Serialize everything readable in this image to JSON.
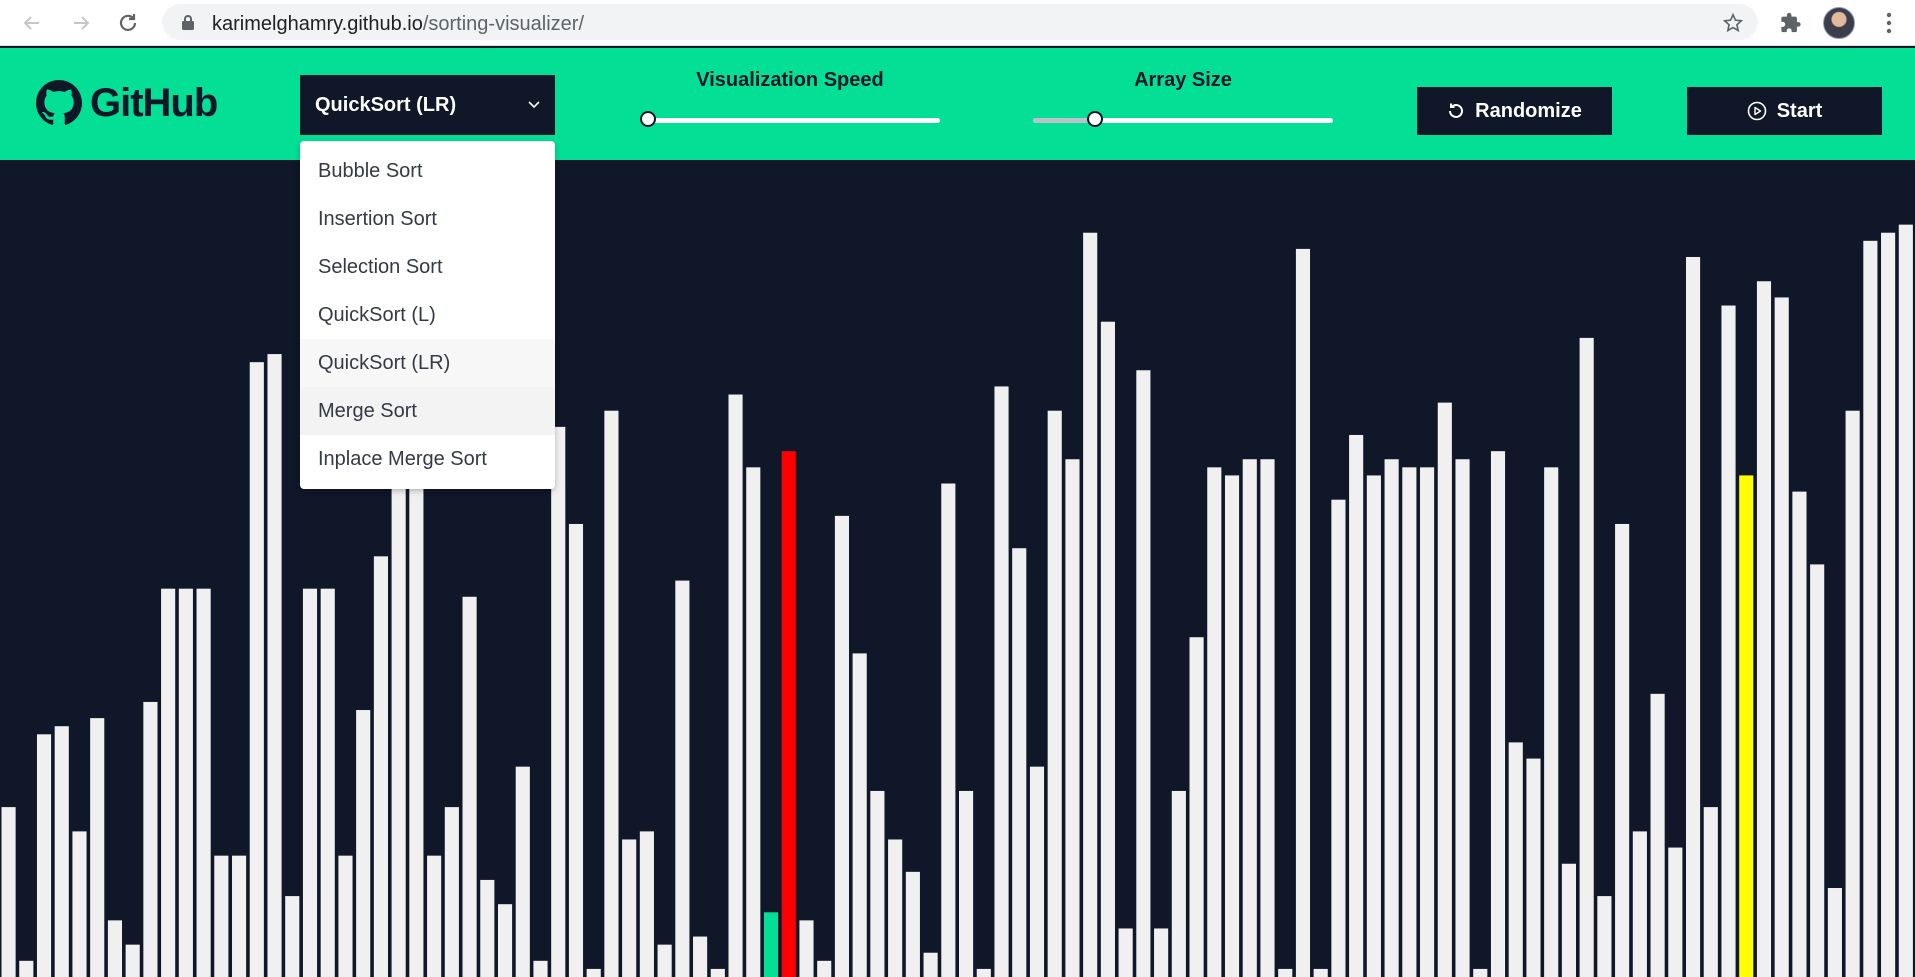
{
  "browser": {
    "url_domain": "karimelghamry.github.io",
    "url_path": "/sorting-visualizer/",
    "icons": [
      "back-arrow-icon",
      "forward-arrow-icon",
      "reload-icon",
      "lock-icon",
      "star-icon",
      "extensions-icon",
      "profile-avatar",
      "kebab-menu-icon"
    ]
  },
  "header": {
    "logo_text": "GitHub",
    "algorithm_select": {
      "selected": "QuickSort (LR)",
      "options": [
        "Bubble Sort",
        "Insertion Sort",
        "Selection Sort",
        "QuickSort (L)",
        "QuickSort (LR)",
        "Merge Sort",
        "Inplace Merge Sort"
      ],
      "hovered": "Merge Sort"
    },
    "speed_slider": {
      "label": "Visualization Speed",
      "value_fraction": 0.0
    },
    "size_slider": {
      "label": "Array Size",
      "value_fraction": 0.19
    },
    "randomize_button": "Randomize",
    "start_button": "Start"
  },
  "colors": {
    "header_bg": "#03e096",
    "page_bg": "#0f1728",
    "bar_default": "#f0f0f0",
    "bar_pivot": "#03e096",
    "bar_compare": "#ff0000",
    "bar_pointer": "#ffff00"
  },
  "bars": {
    "max_value": 100,
    "values": [
      21,
      2,
      30,
      31,
      18,
      32,
      7,
      4,
      34,
      48,
      48,
      48,
      15,
      15,
      76,
      77,
      10,
      48,
      48,
      15,
      33,
      52,
      75,
      77,
      15,
      21,
      47,
      12,
      9,
      26,
      2,
      68,
      56,
      1,
      70,
      17,
      18,
      4,
      49,
      5,
      1,
      72,
      63,
      8,
      65,
      7,
      2,
      57,
      40,
      23,
      17,
      13,
      3,
      61,
      23,
      1,
      73,
      53,
      26,
      70,
      64,
      92,
      81,
      6,
      75,
      6,
      23,
      42,
      63,
      62,
      64,
      64,
      1,
      90,
      1,
      59,
      67,
      62,
      64,
      63,
      63,
      71,
      64,
      1,
      65,
      29,
      27,
      63,
      14,
      79,
      10,
      56,
      18,
      35,
      16,
      89,
      21,
      83,
      62,
      86,
      84,
      60,
      51,
      11,
      70,
      91,
      92,
      93
    ],
    "highlights": {
      "pivot": 43,
      "compare": 44,
      "pointer": 98
    }
  }
}
